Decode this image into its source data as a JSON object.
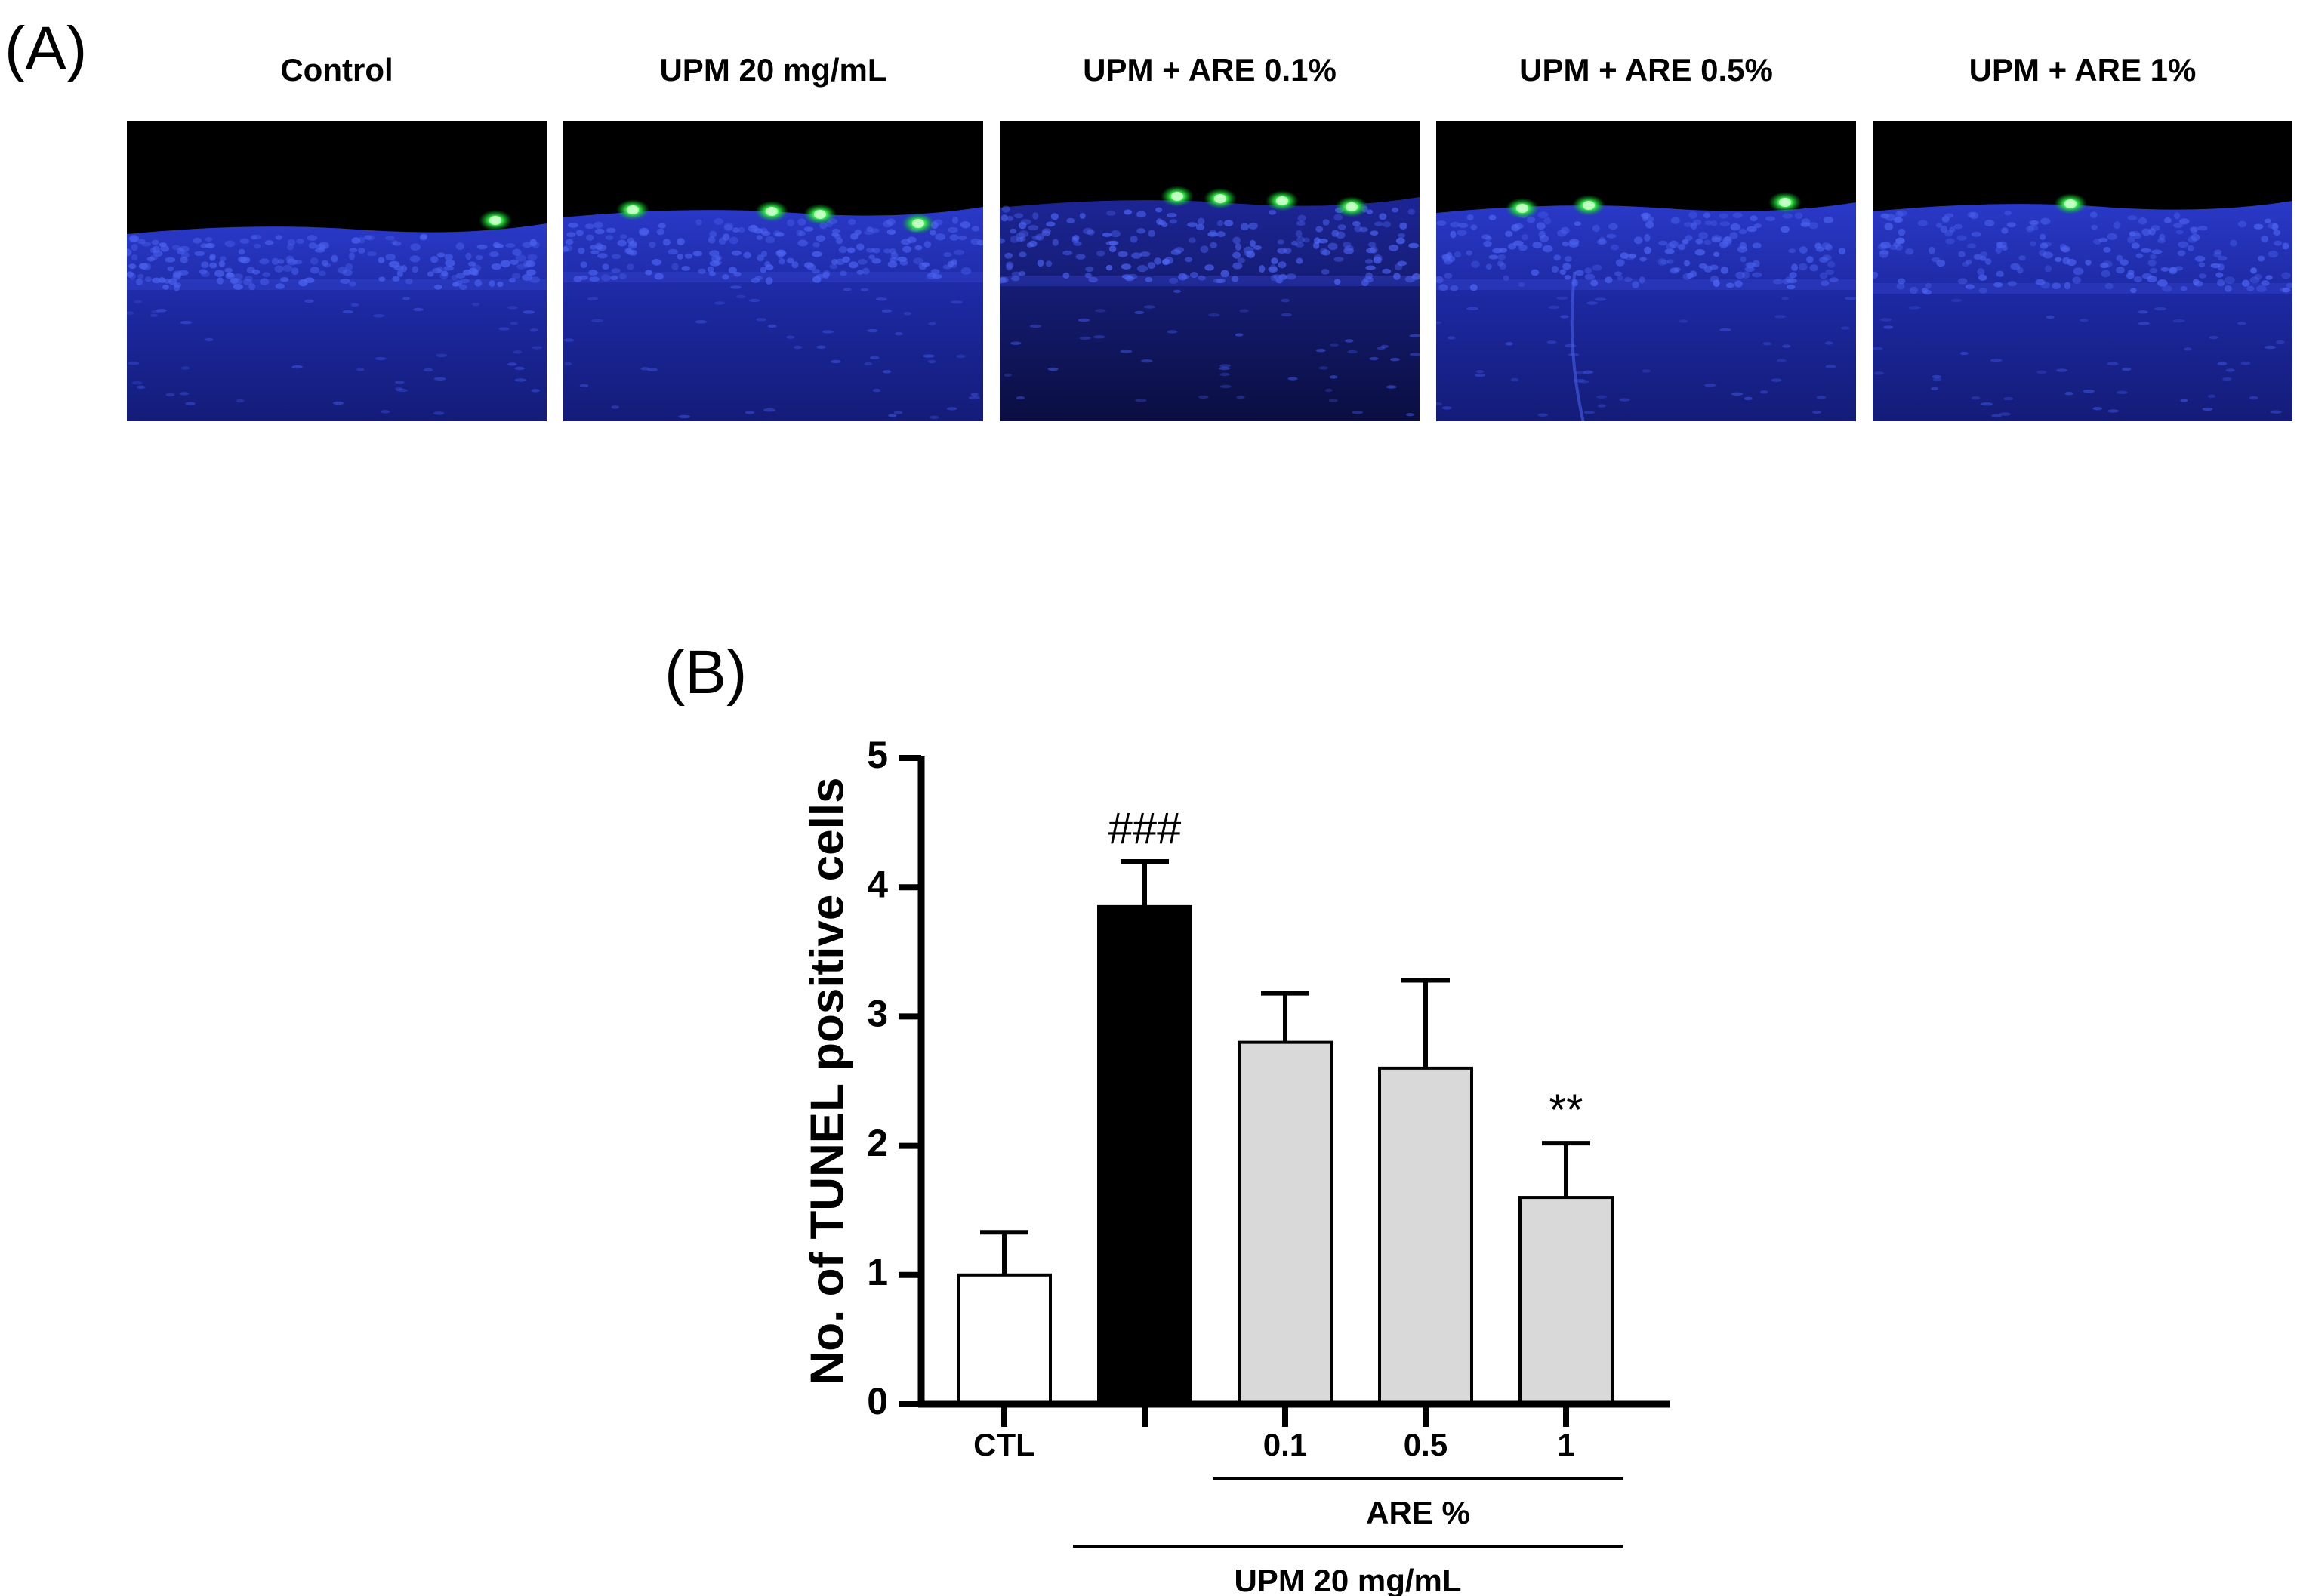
{
  "figure": {
    "panel_a_label": "(A)",
    "panel_b_label": "(B)"
  },
  "micrographs": [
    {
      "title": "Control",
      "green_spots": 1
    },
    {
      "title": "UPM 20 mg/mL",
      "green_spots": 4
    },
    {
      "title": "UPM + ARE 0.1%",
      "green_spots": 4
    },
    {
      "title": "UPM + ARE 0.5%",
      "green_spots": 3
    },
    {
      "title": "UPM + ARE 1%",
      "green_spots": 1
    }
  ],
  "chart_data": {
    "type": "bar",
    "ylabel": "No. of TUNEL positive cells",
    "xlabel": "",
    "ylim": [
      0,
      5
    ],
    "yticks": [
      0,
      1,
      2,
      3,
      4,
      5
    ],
    "categories": [
      "CTL",
      "",
      "0.1",
      "0.5",
      "1"
    ],
    "values": [
      1.0,
      3.85,
      2.8,
      2.6,
      1.6
    ],
    "errors": [
      0.33,
      0.35,
      0.38,
      0.68,
      0.42
    ],
    "bar_colors": [
      "#ffffff",
      "#000000",
      "#d9d9d9",
      "#d9d9d9",
      "#d9d9d9"
    ],
    "significance": [
      "",
      "###",
      "",
      "",
      "**"
    ],
    "group_labels": [
      {
        "label": "ARE %",
        "from": 2,
        "to": 4
      },
      {
        "label": "UPM 20 mg/mL",
        "from": 1,
        "to": 4
      }
    ],
    "grid": false,
    "legend": "none"
  }
}
